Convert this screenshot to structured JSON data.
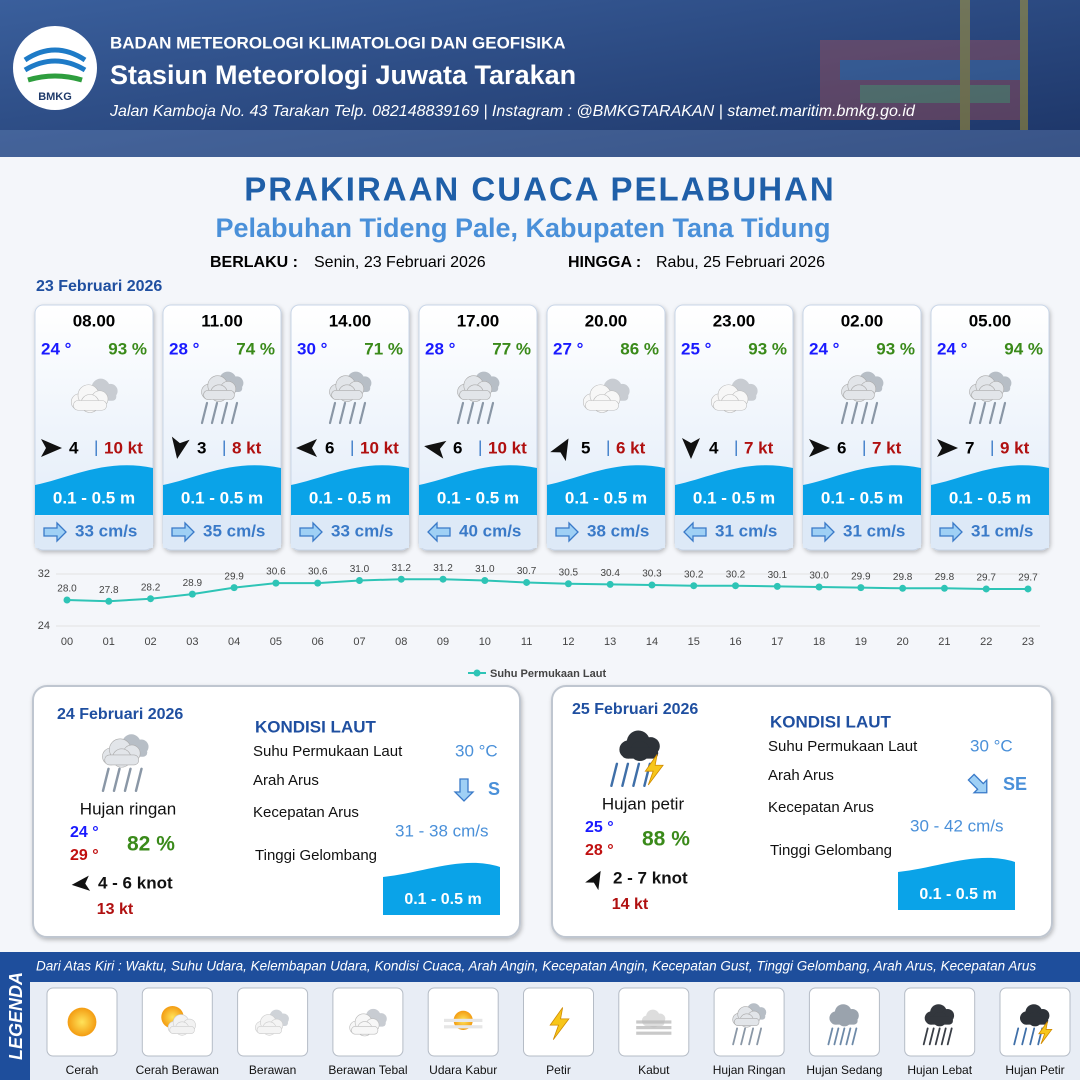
{
  "header": {
    "org": "BADAN METEOROLOGI KLIMATOLOGI DAN GEOFISIKA",
    "station": "Stasiun Meteorologi Juwata Tarakan",
    "address": "Jalan Kamboja No. 43 Tarakan  Telp. 082148839169 | Instagram : @BMKGTARAKAN | stamet.maritim.bmkg.go.id",
    "logo": "BMKG"
  },
  "title": "PRAKIRAAN CUACA PELABUHAN",
  "subtitle": "Pelabuhan Tideng Pale, Kabupaten Tana Tidung",
  "validity": {
    "from_label": "BERLAKU :",
    "from": "Senin, 23 Februari 2026",
    "to_label": "HINGGA :",
    "to": "Rabu, 25 Februari 2026"
  },
  "day1": {
    "date": "23 Februari 2026",
    "cards": [
      {
        "time": "08.00",
        "temp": "24 °",
        "humidity": "93 %",
        "icon": "cloud-thick",
        "wind": 4,
        "wind_dir": 0,
        "gust": "10 kt",
        "wave": "0.1 - 0.5 m",
        "current": "33 cm/s",
        "current_dir": 0
      },
      {
        "time": "11.00",
        "temp": "28 °",
        "humidity": "74 %",
        "icon": "rain-light",
        "wind": 3,
        "wind_dir": 100,
        "gust": "8 kt",
        "wave": "0.1 - 0.5 m",
        "current": "35 cm/s",
        "current_dir": 0
      },
      {
        "time": "14.00",
        "temp": "30 °",
        "humidity": "71 %",
        "icon": "rain-light",
        "wind": 6,
        "wind_dir": 180,
        "gust": "10 kt",
        "wave": "0.1 - 0.5 m",
        "current": "33 cm/s",
        "current_dir": 0
      },
      {
        "time": "17.00",
        "temp": "28 °",
        "humidity": "77 %",
        "icon": "rain-light",
        "wind": 6,
        "wind_dir": 190,
        "gust": "10 kt",
        "wave": "0.1 - 0.5 m",
        "current": "40 cm/s",
        "current_dir": 180
      },
      {
        "time": "20.00",
        "temp": "27 °",
        "humidity": "86 %",
        "icon": "cloud-thick",
        "wind": 5,
        "wind_dir": 300,
        "gust": "6 kt",
        "wave": "0.1 - 0.5 m",
        "current": "38 cm/s",
        "current_dir": 0
      },
      {
        "time": "23.00",
        "temp": "25 °",
        "humidity": "93 %",
        "icon": "cloud-thick",
        "wind": 4,
        "wind_dir": 90,
        "gust": "7 kt",
        "wave": "0.1 - 0.5 m",
        "current": "31 cm/s",
        "current_dir": 180
      },
      {
        "time": "02.00",
        "temp": "24 °",
        "humidity": "93 %",
        "icon": "rain-light",
        "wind": 6,
        "wind_dir": 0,
        "gust": "7 kt",
        "wave": "0.1 - 0.5 m",
        "current": "31 cm/s",
        "current_dir": 0
      },
      {
        "time": "05.00",
        "temp": "24 °",
        "humidity": "94 %",
        "icon": "rain-light",
        "wind": 7,
        "wind_dir": 0,
        "gust": "9 kt",
        "wave": "0.1 - 0.5 m",
        "current": "31 cm/s",
        "current_dir": 0
      }
    ]
  },
  "chart_data": {
    "type": "line",
    "categories": [
      "00",
      "01",
      "02",
      "03",
      "04",
      "05",
      "06",
      "07",
      "08",
      "09",
      "10",
      "11",
      "12",
      "13",
      "14",
      "15",
      "16",
      "17",
      "18",
      "19",
      "20",
      "21",
      "22",
      "23"
    ],
    "series": [
      {
        "name": "Suhu Permukaan Laut",
        "color": "#2ec4b6",
        "values": [
          28.0,
          27.8,
          28.2,
          28.9,
          29.9,
          30.6,
          30.6,
          31.0,
          31.2,
          31.2,
          31.0,
          30.7,
          30.5,
          30.4,
          30.3,
          30.2,
          30.2,
          30.1,
          30.0,
          29.9,
          29.8,
          29.8,
          29.7,
          29.7
        ],
        "value_labels": [
          "28.0",
          "27.8",
          "28.2",
          "28.9",
          "29.9",
          "30.6",
          "30.6",
          "31.0",
          "31.2",
          "31.2",
          "31.0",
          "30.7",
          "30.5",
          "30.4",
          "30.3",
          "30.2",
          "30.2",
          "30.1",
          "30.0",
          "29.9",
          "29.8",
          "29.8",
          "29.7",
          "29.7"
        ]
      }
    ],
    "ylim": [
      24,
      32
    ],
    "yticks": [
      24,
      32
    ],
    "grid": true
  },
  "days": [
    {
      "date": "24 Februari 2026",
      "icon": "rain-light",
      "condition": "Hujan ringan",
      "tmin": "24 °",
      "tmax": "29 °",
      "humidity": "82 %",
      "wind_dir": 175,
      "wind": "4  - 6 knot",
      "gust": "13 kt",
      "heading": "KONDISI LAUT",
      "sst_label": "Suhu Permukaan Laut",
      "sst": "30 °C",
      "dir_label": "Arah Arus",
      "current_dir": 90,
      "dir": "S",
      "speed_label": "Kecepatan Arus",
      "speed": "31 - 38 cm/s",
      "wave_label": "Tinggi Gelombang",
      "wave": "0.1 - 0.5 m"
    },
    {
      "date": "25 Februari 2026",
      "icon": "thunder",
      "condition": "Hujan petir",
      "tmin": "25 °",
      "tmax": "28 °",
      "humidity": "88 %",
      "wind_dir": 300,
      "wind": "2  - 7 knot",
      "gust": "14 kt",
      "heading": "KONDISI LAUT",
      "sst_label": "Suhu Permukaan Laut",
      "sst": "30 °C",
      "dir_label": "Arah Arus",
      "current_dir": 45,
      "dir": "SE",
      "speed_label": "Kecepatan Arus",
      "speed": "30 - 42 cm/s",
      "wave_label": "Tinggi Gelombang",
      "wave": "0.1 - 0.5 m"
    }
  ],
  "legend": {
    "label": "LEGENDA",
    "description": "Dari Atas Kiri : Waktu, Suhu Udara, Kelembapan Udara, Kondisi Cuaca, Arah Angin, Kecepatan Angin, Kecepatan Gust, Tinggi Gelombang, Arah Arus, Kecepatan Arus",
    "items": [
      {
        "name": "Cerah",
        "icon": "sun"
      },
      {
        "name": "Cerah Berawan",
        "icon": "sun-cloud"
      },
      {
        "name": "Berawan",
        "icon": "cloud"
      },
      {
        "name": "Berawan Tebal",
        "icon": "cloud-thick"
      },
      {
        "name": "Udara Kabur",
        "icon": "haze"
      },
      {
        "name": "Petir",
        "icon": "bolt"
      },
      {
        "name": "Kabut",
        "icon": "fog"
      },
      {
        "name": "Hujan Ringan",
        "icon": "rain-light"
      },
      {
        "name": "Hujan Sedang",
        "icon": "rain"
      },
      {
        "name": "Hujan Lebat",
        "icon": "rain-heavy"
      },
      {
        "name": "Hujan Petir",
        "icon": "thunder"
      }
    ]
  }
}
